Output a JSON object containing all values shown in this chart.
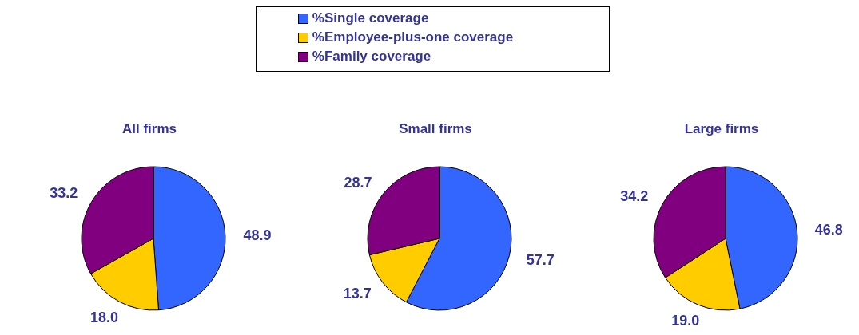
{
  "chart_data": [
    {
      "type": "pie",
      "title": "All firms",
      "categories": [
        "%Single coverage",
        "%Employee-plus-one coverage",
        "%Family coverage"
      ],
      "values": [
        48.9,
        18.0,
        33.2
      ],
      "value_labels": [
        "48.9",
        "18.0",
        "33.2"
      ],
      "colors": [
        "#3366ff",
        "#ffcc00",
        "#800080"
      ],
      "legend": "top"
    },
    {
      "type": "pie",
      "title": "Small firms",
      "categories": [
        null,
        null,
        null
      ],
      "values": [
        57.7,
        13.7,
        28.7
      ],
      "value_labels": [
        "57.7",
        "13.7",
        "28.7"
      ],
      "colors": [
        "#3366ff",
        "#ffcc00",
        "#800080"
      ]
    },
    {
      "type": "pie",
      "title": "Large firms",
      "categories": [
        null,
        null,
        null
      ],
      "values": [
        46.8,
        19.0,
        34.2
      ],
      "value_labels": [
        "46.8",
        "19.0",
        "34.2"
      ],
      "colors": [
        "#3366ff",
        "#ffcc00",
        "#800080"
      ]
    }
  ]
}
